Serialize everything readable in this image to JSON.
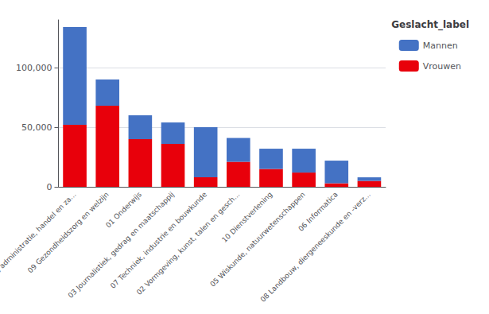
{
  "chart_data": {
    "type": "bar",
    "categories": [
      "cht, administratie, handel en za...",
      "09 Gezondheidszorg en welzijn",
      "01 Onderwijs",
      "03 Journalistiek, gedrag en maatschappij",
      "07 Techniek, industrie en bouwkunde",
      "02 Vormgeving, kunst, talen en gesch...",
      "10 Dienstverlening",
      "05 Wiskunde, natuurwetenschappen",
      "06 Informatica",
      "08 Landbouw, diergeneeskunde en -verz..."
    ],
    "series": [
      {
        "name": "Vrouwen",
        "color": "#E8000B",
        "values": [
          52000,
          68000,
          40000,
          36000,
          8000,
          21000,
          15000,
          12000,
          3000,
          5000
        ]
      },
      {
        "name": "Mannen",
        "color": "#4472C4",
        "values": [
          82000,
          22000,
          20000,
          18000,
          42000,
          20000,
          17000,
          20000,
          19000,
          3000
        ]
      }
    ],
    "stacked": true,
    "legend_title": "Geslacht_label",
    "legend": "right",
    "ylim": [
      0,
      140000
    ],
    "yticks": [
      0,
      {
        "value": 50000,
        "label": "50,000"
      },
      {
        "value": 100000,
        "label": "100,000"
      }
    ],
    "grid": true
  }
}
